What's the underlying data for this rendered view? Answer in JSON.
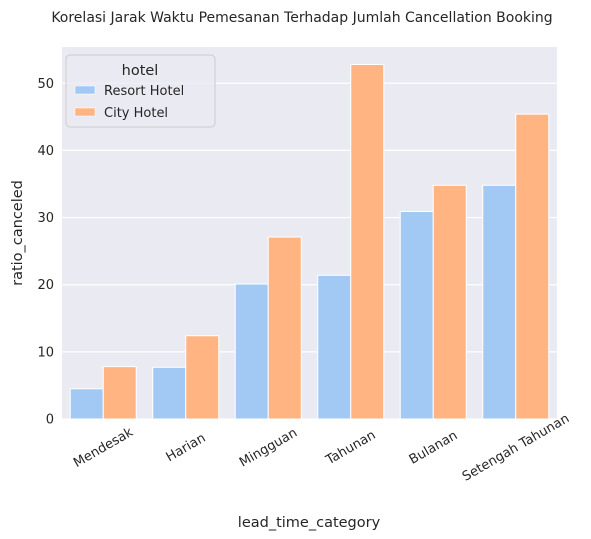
{
  "chart_data": {
    "type": "bar",
    "title": "Korelasi Jarak Waktu Pemesanan Terhadap Jumlah Cancellation Booking",
    "xlabel": "lead_time_category",
    "ylabel": "ratio_canceled",
    "categories": [
      "Mendesak",
      "Harian",
      "Mingguan",
      "Tahunan",
      "Bulanan",
      "Setengah Tahunan"
    ],
    "series": [
      {
        "name": "Resort Hotel",
        "color": "#a1c9f4",
        "values": [
          4.5,
          7.7,
          20.1,
          21.4,
          30.9,
          34.8
        ]
      },
      {
        "name": "City Hotel",
        "color": "#ffb482",
        "values": [
          7.8,
          12.4,
          27.1,
          52.8,
          34.8,
          45.4
        ]
      }
    ],
    "legend_title": "hotel",
    "legend_position": "top-left",
    "yticks": [
      0,
      10,
      20,
      30,
      40,
      50
    ],
    "ylim": [
      0,
      55.4
    ],
    "grid": true,
    "background": "#eaeaf2"
  }
}
